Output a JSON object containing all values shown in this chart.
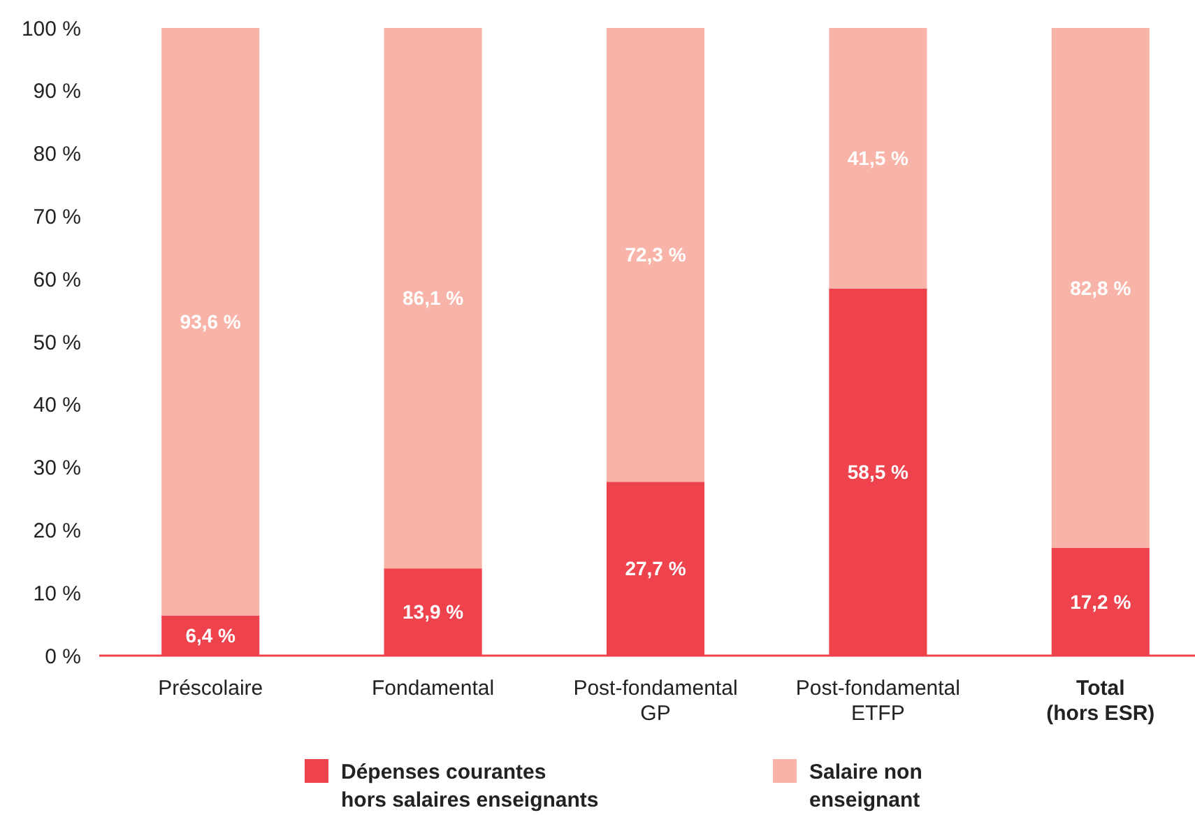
{
  "chart_data": {
    "type": "bar",
    "stacked": true,
    "categories": [
      "Préscolaire",
      "Fondamental",
      "Post-fondamental\nGP",
      "Post-fondamental\nETFP",
      "Total\n(hors ESR)"
    ],
    "series": [
      {
        "name": "Dépenses courantes\nhors salaires enseignants",
        "color": "#ee424d",
        "values": [
          6.4,
          13.9,
          27.7,
          58.5,
          17.2
        ],
        "value_labels": [
          "6,4 %",
          "13,9 %",
          "27,7 %",
          "58,5 %",
          "17,2 %"
        ]
      },
      {
        "name": "Salaire non\nenseignant",
        "color": "#f8b4a8",
        "values": [
          93.6,
          86.1,
          72.3,
          41.5,
          82.8
        ],
        "value_labels": [
          "93,6 %",
          "86,1 %",
          "72,3 %",
          "41,5 %",
          "82,8 %"
        ]
      }
    ],
    "ylim": [
      0,
      100
    ],
    "yticks": [
      {
        "value": 0,
        "label": "0 %"
      },
      {
        "value": 10,
        "label": "10 %"
      },
      {
        "value": 20,
        "label": "20 %"
      },
      {
        "value": 30,
        "label": "30 %"
      },
      {
        "value": 40,
        "label": "40 %"
      },
      {
        "value": 50,
        "label": "50 %"
      },
      {
        "value": 60,
        "label": "60 %"
      },
      {
        "value": 70,
        "label": "70 %"
      },
      {
        "value": 80,
        "label": "80 %"
      },
      {
        "value": 90,
        "label": "90 %"
      },
      {
        "value": 100,
        "label": "100 %"
      }
    ],
    "grid": false,
    "legend": "bottom"
  }
}
